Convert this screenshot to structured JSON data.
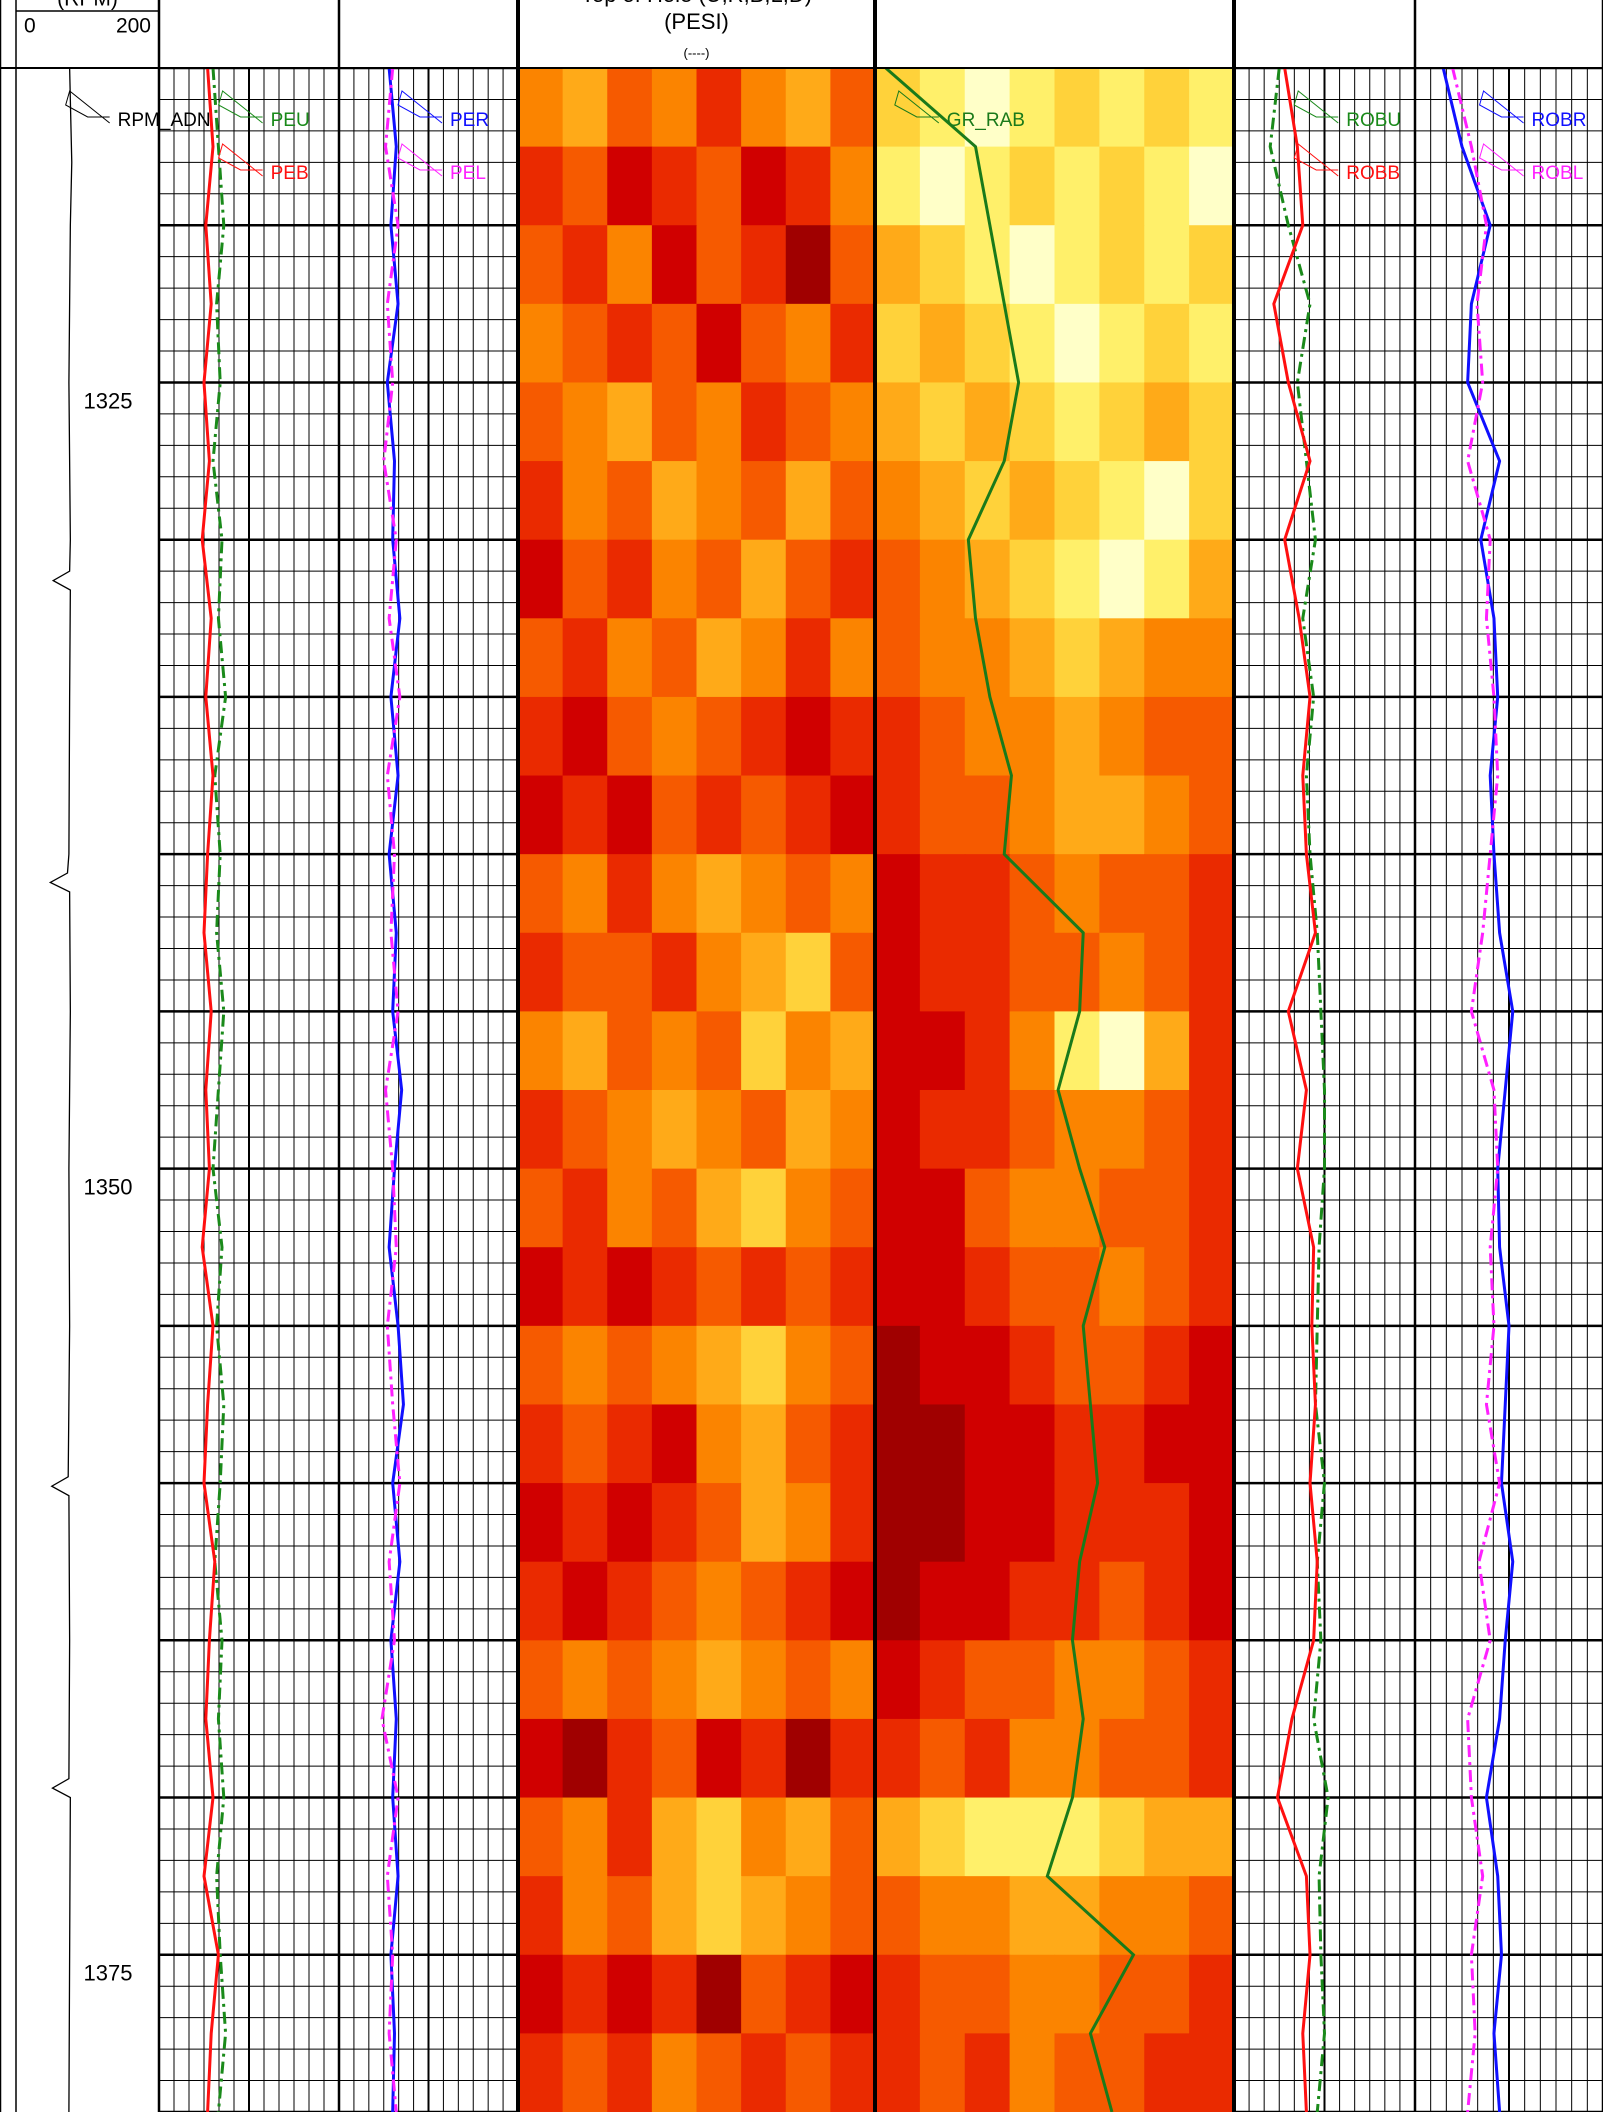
{
  "chart_data": {
    "type": "well_log",
    "ylim": [
      1315,
      1380
    ],
    "yticks": [
      1325,
      1350,
      1375
    ],
    "major_step": 5,
    "minor_step": 1,
    "depth": [
      1315,
      1317.5,
      1320,
      1322.5,
      1325,
      1327.5,
      1330,
      1332.5,
      1335,
      1337.5,
      1340,
      1342.5,
      1345,
      1347.5,
      1350,
      1352.5,
      1355,
      1357.5,
      1360,
      1362.5,
      1365,
      1367.5,
      1370,
      1372.5,
      1375,
      1377.5,
      1380
    ],
    "colormap": [
      "#6e0000",
      "#a00000",
      "#d00000",
      "#ea2a00",
      "#f65a00",
      "#fb8400",
      "#ffaa18",
      "#ffd23a",
      "#fff06a",
      "#ffffc8"
    ],
    "tracks": [
      {
        "type": "depth",
        "header": [
          "(RPM)"
        ],
        "xlim": [
          0,
          200
        ],
        "xticks": [
          0,
          200
        ],
        "series": [
          {
            "name": "RPM_ADN",
            "color": "#000000",
            "style": "solid",
            "depth": [
              1315,
              1318,
              1320,
              1325,
              1330,
              1331.0,
              1331.3,
              1331.6,
              1335,
              1340,
              1340.6,
              1340.9,
              1341.2,
              1345,
              1350,
              1355,
              1359.8,
              1360.1,
              1360.4,
              1365,
              1369.4,
              1369.7,
              1370,
              1375,
              1380
            ],
            "values": [
              75,
              78,
              76,
              74,
              76,
              75,
              52,
              76,
              75,
              74,
              72,
              48,
              75,
              76,
              74,
              75,
              73,
              50,
              74,
              75,
              74,
              51,
              76,
              75,
              74
            ]
          }
        ]
      },
      {
        "type": "line",
        "xlim": [
          0,
          1
        ],
        "series": [
          {
            "name": "PEU",
            "color": "#1a8a1a",
            "style": "dashdot",
            "values": [
              0.3,
              0.33,
              0.36,
              0.32,
              0.34,
              0.3,
              0.35,
              0.33,
              0.37,
              0.31,
              0.34,
              0.32,
              0.36,
              0.33,
              0.3,
              0.35,
              0.32,
              0.36,
              0.34,
              0.31,
              0.35,
              0.33,
              0.36,
              0.32,
              0.34,
              0.37,
              0.33
            ]
          },
          {
            "name": "PEB",
            "color": "#ff1010",
            "style": "solid",
            "values": [
              0.27,
              0.3,
              0.26,
              0.29,
              0.25,
              0.28,
              0.24,
              0.29,
              0.26,
              0.3,
              0.27,
              0.25,
              0.29,
              0.26,
              0.28,
              0.24,
              0.3,
              0.27,
              0.25,
              0.31,
              0.28,
              0.26,
              0.3,
              0.25,
              0.33,
              0.29,
              0.27
            ]
          }
        ]
      },
      {
        "type": "line",
        "xlim": [
          0,
          1
        ],
        "series": [
          {
            "name": "PER",
            "color": "#1010ff",
            "style": "solid",
            "values": [
              0.28,
              0.32,
              0.29,
              0.33,
              0.27,
              0.31,
              0.3,
              0.34,
              0.29,
              0.33,
              0.28,
              0.32,
              0.3,
              0.35,
              0.31,
              0.28,
              0.33,
              0.36,
              0.3,
              0.34,
              0.29,
              0.32,
              0.3,
              0.33,
              0.29,
              0.31,
              0.3
            ]
          },
          {
            "name": "PEL",
            "color": "#ff20ff",
            "style": "dashdot",
            "values": [
              0.3,
              0.26,
              0.33,
              0.27,
              0.3,
              0.25,
              0.32,
              0.28,
              0.34,
              0.27,
              0.31,
              0.29,
              0.33,
              0.26,
              0.3,
              0.32,
              0.27,
              0.3,
              0.34,
              0.28,
              0.31,
              0.24,
              0.33,
              0.27,
              0.3,
              0.28,
              0.32
            ]
          }
        ]
      },
      {
        "type": "heatmap",
        "header": [
          "Top of Hole (U,R,B,L,D)",
          "(PESI)",
          "(----)"
        ],
        "image": [
          [
            5,
            6,
            4,
            5,
            3,
            5,
            6,
            4
          ],
          [
            3,
            4,
            2,
            3,
            4,
            2,
            3,
            5
          ],
          [
            4,
            3,
            5,
            2,
            4,
            3,
            1,
            4
          ],
          [
            5,
            4,
            3,
            4,
            2,
            4,
            5,
            3
          ],
          [
            4,
            5,
            6,
            4,
            5,
            3,
            4,
            5
          ],
          [
            3,
            5,
            4,
            6,
            5,
            4,
            6,
            4
          ],
          [
            2,
            4,
            3,
            5,
            4,
            6,
            4,
            3
          ],
          [
            4,
            3,
            5,
            4,
            6,
            5,
            3,
            5
          ],
          [
            3,
            2,
            4,
            5,
            4,
            3,
            2,
            3
          ],
          [
            2,
            3,
            2,
            4,
            3,
            4,
            3,
            2
          ],
          [
            4,
            5,
            3,
            5,
            6,
            5,
            4,
            5
          ],
          [
            3,
            4,
            4,
            3,
            5,
            6,
            7,
            4
          ],
          [
            5,
            6,
            4,
            5,
            4,
            7,
            5,
            6
          ],
          [
            3,
            4,
            5,
            6,
            5,
            4,
            6,
            5
          ],
          [
            4,
            3,
            5,
            4,
            6,
            7,
            5,
            4
          ],
          [
            2,
            3,
            2,
            3,
            4,
            3,
            4,
            3
          ],
          [
            4,
            5,
            4,
            5,
            6,
            7,
            5,
            4
          ],
          [
            3,
            4,
            3,
            2,
            5,
            6,
            4,
            3
          ],
          [
            2,
            3,
            2,
            3,
            4,
            6,
            5,
            3
          ],
          [
            3,
            2,
            3,
            4,
            5,
            4,
            3,
            2
          ],
          [
            4,
            5,
            4,
            5,
            6,
            5,
            4,
            5
          ],
          [
            2,
            1,
            3,
            4,
            2,
            3,
            1,
            3
          ],
          [
            4,
            5,
            3,
            6,
            7,
            5,
            6,
            4
          ],
          [
            3,
            5,
            4,
            6,
            7,
            6,
            5,
            4
          ],
          [
            2,
            3,
            2,
            3,
            1,
            4,
            3,
            2
          ],
          [
            3,
            4,
            3,
            5,
            4,
            3,
            4,
            3
          ]
        ],
        "series": []
      },
      {
        "type": "heatmap",
        "xlim": [
          0,
          1
        ],
        "image": [
          [
            7,
            8,
            9,
            8,
            7,
            8,
            7,
            8
          ],
          [
            8,
            9,
            8,
            7,
            8,
            7,
            8,
            9
          ],
          [
            6,
            7,
            8,
            9,
            8,
            7,
            8,
            7
          ],
          [
            7,
            6,
            7,
            8,
            9,
            8,
            7,
            8
          ],
          [
            6,
            7,
            6,
            7,
            8,
            7,
            6,
            7
          ],
          [
            5,
            6,
            7,
            6,
            7,
            8,
            9,
            7
          ],
          [
            4,
            5,
            6,
            7,
            8,
            9,
            8,
            6
          ],
          [
            4,
            5,
            5,
            6,
            7,
            6,
            5,
            5
          ],
          [
            3,
            4,
            5,
            5,
            6,
            5,
            4,
            4
          ],
          [
            3,
            4,
            4,
            5,
            6,
            6,
            5,
            4
          ],
          [
            2,
            3,
            3,
            4,
            5,
            4,
            4,
            3
          ],
          [
            2,
            3,
            3,
            4,
            4,
            5,
            4,
            3
          ],
          [
            2,
            2,
            3,
            5,
            8,
            9,
            6,
            3
          ],
          [
            2,
            3,
            3,
            4,
            5,
            5,
            4,
            3
          ],
          [
            2,
            2,
            4,
            5,
            5,
            4,
            4,
            3
          ],
          [
            2,
            2,
            3,
            4,
            4,
            5,
            4,
            3
          ],
          [
            1,
            2,
            2,
            3,
            4,
            4,
            3,
            2
          ],
          [
            1,
            1,
            2,
            2,
            3,
            3,
            2,
            2
          ],
          [
            1,
            1,
            2,
            2,
            3,
            3,
            3,
            2
          ],
          [
            1,
            2,
            2,
            3,
            3,
            4,
            3,
            2
          ],
          [
            2,
            3,
            4,
            4,
            5,
            5,
            4,
            3
          ],
          [
            3,
            4,
            3,
            5,
            5,
            4,
            4,
            3
          ],
          [
            6,
            7,
            8,
            8,
            8,
            7,
            6,
            6
          ],
          [
            4,
            5,
            5,
            6,
            6,
            5,
            5,
            4
          ],
          [
            3,
            4,
            4,
            5,
            5,
            4,
            4,
            3
          ],
          [
            3,
            4,
            3,
            5,
            4,
            4,
            3,
            3
          ]
        ],
        "series": [
          {
            "name": "GR_RAB",
            "color": "#1a7a1a",
            "style": "solid",
            "values": [
              0.03,
              0.28,
              0.32,
              0.36,
              0.4,
              0.36,
              0.26,
              0.28,
              0.32,
              0.38,
              0.36,
              0.58,
              0.57,
              0.51,
              0.57,
              0.64,
              0.58,
              0.6,
              0.62,
              0.57,
              0.55,
              0.58,
              0.55,
              0.48,
              0.72,
              0.6,
              0.66
            ]
          }
        ]
      },
      {
        "type": "line",
        "xlim": [
          0,
          1
        ],
        "series": [
          {
            "name": "ROBU",
            "color": "#1a8a1a",
            "style": "dashdot",
            "values": [
              0.25,
              0.2,
              0.3,
              0.42,
              0.35,
              0.4,
              0.45,
              0.38,
              0.44,
              0.4,
              0.42,
              0.46,
              0.48,
              0.5,
              0.5,
              0.47,
              0.46,
              0.45,
              0.5,
              0.46,
              0.48,
              0.44,
              0.52,
              0.47,
              0.48,
              0.5,
              0.46
            ]
          },
          {
            "name": "ROBB",
            "color": "#ff1010",
            "style": "solid",
            "values": [
              0.28,
              0.35,
              0.38,
              0.22,
              0.3,
              0.42,
              0.28,
              0.36,
              0.42,
              0.38,
              0.4,
              0.45,
              0.3,
              0.4,
              0.35,
              0.44,
              0.43,
              0.45,
              0.42,
              0.46,
              0.44,
              0.32,
              0.24,
              0.4,
              0.42,
              0.38,
              0.4
            ]
          }
        ]
      },
      {
        "type": "line",
        "xlim": [
          0,
          1
        ],
        "series": [
          {
            "name": "ROBR",
            "color": "#1010ff",
            "style": "solid",
            "values": [
              0.15,
              0.25,
              0.4,
              0.3,
              0.28,
              0.45,
              0.35,
              0.42,
              0.44,
              0.4,
              0.42,
              0.45,
              0.52,
              0.48,
              0.44,
              0.45,
              0.5,
              0.48,
              0.46,
              0.52,
              0.48,
              0.45,
              0.38,
              0.44,
              0.46,
              0.42,
              0.45
            ]
          },
          {
            "name": "ROBL",
            "color": "#ff20ff",
            "style": "dashdot",
            "values": [
              0.2,
              0.3,
              0.38,
              0.33,
              0.36,
              0.28,
              0.4,
              0.38,
              0.42,
              0.44,
              0.4,
              0.36,
              0.3,
              0.42,
              0.44,
              0.4,
              0.42,
              0.38,
              0.45,
              0.34,
              0.4,
              0.28,
              0.3,
              0.36,
              0.3,
              0.32,
              0.28
            ]
          }
        ]
      }
    ]
  }
}
